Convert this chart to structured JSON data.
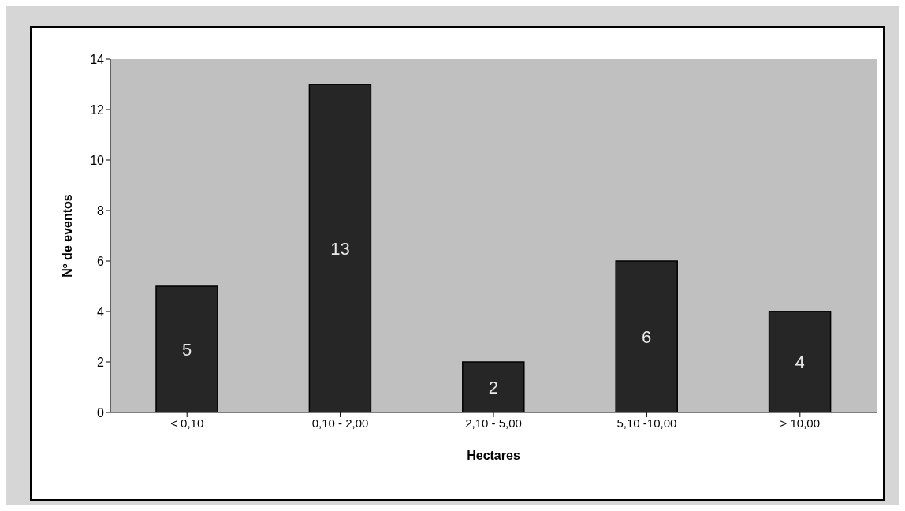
{
  "chart_data": {
    "type": "bar",
    "xlabel": "Hectares",
    "ylabel": "Nº de eventos",
    "categories": [
      "< 0,10",
      "0,10 - 2,00",
      "2,10 - 5,00",
      "5,10 -10,00",
      "> 10,00"
    ],
    "values": [
      5,
      13,
      2,
      6,
      4
    ],
    "color": "#262626",
    "ylim": [
      0,
      14
    ],
    "yticks": [
      0,
      2,
      4,
      6,
      8,
      10,
      12,
      14
    ],
    "grid": false,
    "legend": false,
    "data_labels": true
  }
}
